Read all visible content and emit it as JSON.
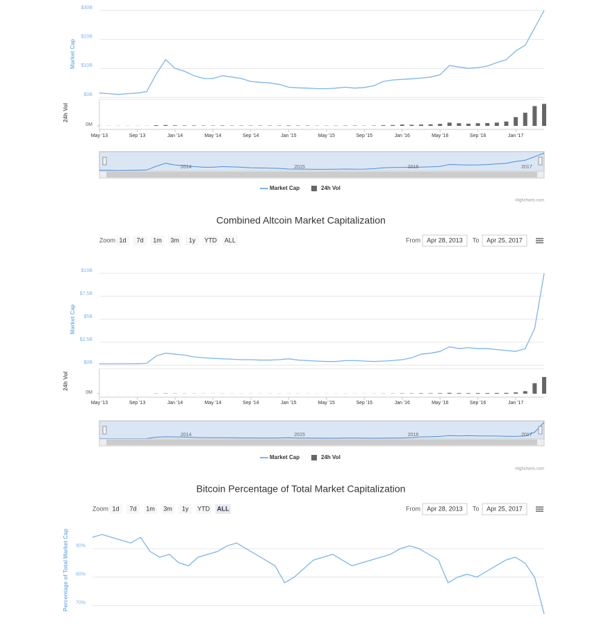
{
  "chart_data": [
    {
      "type": "stock",
      "y_label": "Market Cap",
      "y2_label": "24h Vol",
      "x": [
        "2013-05",
        "2013-06",
        "2013-07",
        "2013-08",
        "2013-09",
        "2013-10",
        "2013-11",
        "2013-12",
        "2014-01",
        "2014-02",
        "2014-03",
        "2014-04",
        "2014-05",
        "2014-06",
        "2014-07",
        "2014-08",
        "2014-09",
        "2014-10",
        "2014-11",
        "2014-12",
        "2015-01",
        "2015-02",
        "2015-03",
        "2015-04",
        "2015-05",
        "2015-06",
        "2015-07",
        "2015-08",
        "2015-09",
        "2015-10",
        "2015-11",
        "2015-12",
        "2016-01",
        "2016-02",
        "2016-03",
        "2016-04",
        "2016-05",
        "2016-06",
        "2016-07",
        "2016-08",
        "2016-09",
        "2016-10",
        "2016-11",
        "2016-12",
        "2017-01",
        "2017-02",
        "2017-03",
        "2017-04"
      ],
      "xlim": [
        "2013-05",
        "2017-04"
      ],
      "xticks": [
        {
          "value": "2013-05",
          "label": "May '13"
        },
        {
          "value": "2013-09",
          "label": "Sep '13"
        },
        {
          "value": "2014-01",
          "label": "Jan '14"
        },
        {
          "value": "2014-05",
          "label": "May '14"
        },
        {
          "value": "2014-09",
          "label": "Sep '14"
        },
        {
          "value": "2015-01",
          "label": "Jan '15"
        },
        {
          "value": "2015-05",
          "label": "May '15"
        },
        {
          "value": "2015-09",
          "label": "Sep '15"
        },
        {
          "value": "2016-01",
          "label": "Jan '16"
        },
        {
          "value": "2016-05",
          "label": "May '16"
        },
        {
          "value": "2016-09",
          "label": "Sep '16"
        },
        {
          "value": "2017-01",
          "label": "Jan '17"
        }
      ],
      "ylim": [
        0,
        30
      ],
      "yticks": [
        {
          "value": 0,
          "label": "$0B"
        },
        {
          "value": 10,
          "label": "$10B"
        },
        {
          "value": 20,
          "label": "$20B"
        },
        {
          "value": 30,
          "label": "$30B"
        }
      ],
      "y2lim": [
        0,
        1200
      ],
      "y2ticks": [
        {
          "value": 0,
          "label": "0M"
        }
      ],
      "grid": true,
      "series": [
        {
          "name": "Market Cap",
          "color": "#7cb5ec",
          "values": [
            1.5,
            1.3,
            1.0,
            1.3,
            1.5,
            2.0,
            8,
            13,
            10,
            9,
            7.5,
            6.5,
            6.5,
            7.5,
            7.0,
            6.5,
            5.5,
            5.2,
            5.0,
            4.5,
            3.5,
            3.3,
            3.2,
            3.0,
            3.0,
            3.2,
            3.5,
            3.2,
            3.4,
            4.0,
            5.5,
            6.0,
            6.2,
            6.4,
            6.7,
            7.0,
            7.8,
            11,
            10.5,
            10,
            10.3,
            10.8,
            12,
            13,
            16,
            18,
            24,
            30
          ]
        },
        {
          "name": "24h Vol",
          "color": "#666666",
          "axis": "y2",
          "values": [
            5,
            5,
            5,
            5,
            5,
            5,
            30,
            40,
            25,
            20,
            20,
            15,
            15,
            20,
            15,
            15,
            15,
            15,
            15,
            15,
            20,
            15,
            15,
            10,
            10,
            10,
            15,
            15,
            10,
            15,
            30,
            40,
            60,
            50,
            60,
            70,
            90,
            150,
            120,
            100,
            120,
            130,
            150,
            200,
            400,
            600,
            900,
            1000
          ]
        }
      ],
      "navigator_labels": [
        "2014",
        "2015",
        "2016",
        "2017"
      ],
      "credits": "Highcharts.com"
    },
    {
      "type": "stock",
      "title": "Combined Altcoin Market Capitalization",
      "zoom_label": "Zoom",
      "zoom_buttons": [
        "1d",
        "7d",
        "1m",
        "3m",
        "1y",
        "YTD",
        "ALL"
      ],
      "from_label": "From",
      "from": "Apr 28, 2013",
      "to_label": "To",
      "to": "Apr 25, 2017",
      "y_label": "Market Cap",
      "y2_label": "24h Vol",
      "x": [
        "2013-05",
        "2013-06",
        "2013-07",
        "2013-08",
        "2013-09",
        "2013-10",
        "2013-11",
        "2013-12",
        "2014-01",
        "2014-02",
        "2014-03",
        "2014-04",
        "2014-05",
        "2014-06",
        "2014-07",
        "2014-08",
        "2014-09",
        "2014-10",
        "2014-11",
        "2014-12",
        "2015-01",
        "2015-02",
        "2015-03",
        "2015-04",
        "2015-05",
        "2015-06",
        "2015-07",
        "2015-08",
        "2015-09",
        "2015-10",
        "2015-11",
        "2015-12",
        "2016-01",
        "2016-02",
        "2016-03",
        "2016-04",
        "2016-05",
        "2016-06",
        "2016-07",
        "2016-08",
        "2016-09",
        "2016-10",
        "2016-11",
        "2016-12",
        "2017-01",
        "2017-02",
        "2017-03",
        "2017-04"
      ],
      "xlim": [
        "2013-05",
        "2017-04"
      ],
      "xticks": [
        {
          "value": "2013-05",
          "label": "May '13"
        },
        {
          "value": "2013-09",
          "label": "Sep '13"
        },
        {
          "value": "2014-01",
          "label": "Jan '14"
        },
        {
          "value": "2014-05",
          "label": "May '14"
        },
        {
          "value": "2014-09",
          "label": "Sep '14"
        },
        {
          "value": "2015-01",
          "label": "Jan '15"
        },
        {
          "value": "2015-05",
          "label": "May '15"
        },
        {
          "value": "2015-09",
          "label": "Sep '15"
        },
        {
          "value": "2016-01",
          "label": "Jan '16"
        },
        {
          "value": "2016-05",
          "label": "May '16"
        },
        {
          "value": "2016-09",
          "label": "Sep '16"
        },
        {
          "value": "2017-01",
          "label": "Jan '17"
        }
      ],
      "ylim": [
        0,
        10
      ],
      "yticks": [
        {
          "value": 0,
          "label": "$0B"
        },
        {
          "value": 2.5,
          "label": "$2.5B"
        },
        {
          "value": 5,
          "label": "$5B"
        },
        {
          "value": 7.5,
          "label": "$7.5B"
        },
        {
          "value": 10,
          "label": "$10B"
        }
      ],
      "y2lim": [
        0,
        1200
      ],
      "y2ticks": [
        {
          "value": 0,
          "label": "0M"
        }
      ],
      "grid": true,
      "series": [
        {
          "name": "Market Cap",
          "color": "#7cb5ec",
          "values": [
            0.15,
            0.15,
            0.15,
            0.16,
            0.17,
            0.2,
            1.0,
            1.3,
            1.2,
            1.1,
            0.9,
            0.8,
            0.75,
            0.7,
            0.65,
            0.6,
            0.6,
            0.55,
            0.55,
            0.6,
            0.7,
            0.55,
            0.5,
            0.45,
            0.4,
            0.4,
            0.5,
            0.5,
            0.45,
            0.4,
            0.45,
            0.5,
            0.6,
            0.8,
            1.2,
            1.3,
            1.5,
            2.0,
            1.8,
            1.9,
            1.8,
            1.8,
            1.7,
            1.6,
            1.5,
            1.8,
            4.0,
            10
          ]
        },
        {
          "name": "24h Vol",
          "color": "#666666",
          "axis": "y2",
          "values": [
            2,
            2,
            2,
            2,
            2,
            2,
            10,
            15,
            10,
            8,
            8,
            6,
            6,
            6,
            5,
            5,
            5,
            5,
            5,
            5,
            6,
            5,
            5,
            4,
            4,
            4,
            5,
            5,
            4,
            5,
            8,
            10,
            15,
            15,
            20,
            20,
            25,
            40,
            30,
            25,
            30,
            30,
            35,
            40,
            60,
            120,
            500,
            800
          ]
        }
      ],
      "navigator_labels": [
        "2014",
        "2015",
        "2016",
        "2017"
      ],
      "credits": "Highcharts.com"
    },
    {
      "type": "stock",
      "title": "Bitcoin Percentage of Total Market Capitalization",
      "zoom_label": "Zoom",
      "zoom_buttons": [
        "1d",
        "7d",
        "1m",
        "3m",
        "1y",
        "YTD",
        "ALL"
      ],
      "selected_zoom": "ALL",
      "from_label": "From",
      "from": "Apr 28, 2013",
      "to_label": "To",
      "to": "Apr 25, 2017",
      "y_label": "Percentage of Total Market Cap",
      "x": [
        "2013-05",
        "2013-06",
        "2013-07",
        "2013-08",
        "2013-09",
        "2013-10",
        "2013-11",
        "2013-12",
        "2014-01",
        "2014-02",
        "2014-03",
        "2014-04",
        "2014-05",
        "2014-06",
        "2014-07",
        "2014-08",
        "2014-09",
        "2014-10",
        "2014-11",
        "2014-12",
        "2015-01",
        "2015-02",
        "2015-03",
        "2015-04",
        "2015-05",
        "2015-06",
        "2015-07",
        "2015-08",
        "2015-09",
        "2015-10",
        "2015-11",
        "2015-12",
        "2016-01",
        "2016-02",
        "2016-03",
        "2016-04",
        "2016-05",
        "2016-06",
        "2016-07",
        "2016-08",
        "2016-09",
        "2016-10",
        "2016-11",
        "2016-12",
        "2017-01",
        "2017-02",
        "2017-03",
        "2017-04"
      ],
      "xlim": [
        "2013-05",
        "2017-04"
      ],
      "ylim": [
        65,
        100
      ],
      "yticks": [
        {
          "value": 70,
          "label": "70%"
        },
        {
          "value": 80,
          "label": "80%"
        },
        {
          "value": 90,
          "label": "90%"
        }
      ],
      "grid": true,
      "series": [
        {
          "name": "Market Cap",
          "color": "#7cb5ec",
          "values": [
            94,
            95,
            94,
            93,
            92,
            94,
            89,
            87,
            88,
            85,
            84,
            87,
            88,
            89,
            91,
            92,
            90,
            88,
            86,
            84,
            78,
            80,
            83,
            86,
            87,
            88,
            86,
            84,
            85,
            86,
            87,
            88,
            90,
            91,
            90,
            88,
            86,
            78,
            80,
            81,
            80,
            82,
            84,
            86,
            87,
            85,
            80,
            67
          ]
        }
      ]
    }
  ]
}
